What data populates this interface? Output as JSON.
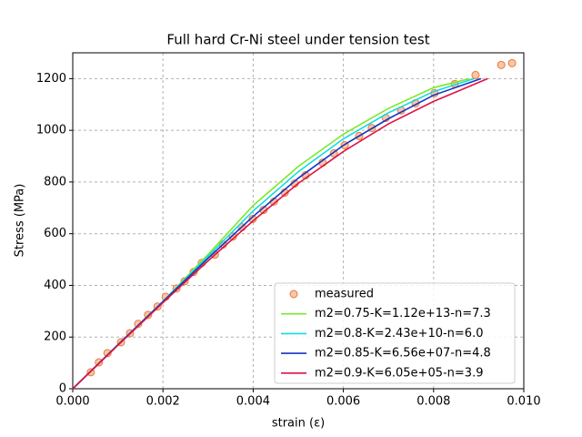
{
  "chart_data": {
    "type": "line",
    "title": "Full hard Cr-Ni steel under tension test",
    "xlabel": "strain (ε)",
    "ylabel": "Stress (MPa)",
    "xlim": [
      0,
      0.01
    ],
    "ylim": [
      0,
      1300
    ],
    "xticks": [
      {
        "value": 0,
        "label": "0.000"
      },
      {
        "value": 0.002,
        "label": "0.002"
      },
      {
        "value": 0.004,
        "label": "0.004"
      },
      {
        "value": 0.006,
        "label": "0.006"
      },
      {
        "value": 0.008,
        "label": "0.008"
      },
      {
        "value": 0.01,
        "label": "0.010"
      }
    ],
    "yticks": [
      0,
      200,
      400,
      600,
      800,
      1000,
      1200
    ],
    "grid": true,
    "legend": "lower right",
    "series": [
      {
        "name": "measured",
        "kind": "scatter",
        "color": "#e8783c",
        "fill": "#f9c6a6",
        "x": [
          0.0004,
          0.00058,
          0.00077,
          0.00107,
          0.00127,
          0.00145,
          0.00167,
          0.00188,
          0.00206,
          0.0023,
          0.00248,
          0.00268,
          0.00286,
          0.00315,
          0.00333,
          0.00355,
          0.00375,
          0.00399,
          0.00423,
          0.00446,
          0.0047,
          0.00492,
          0.00516,
          0.00554,
          0.00579,
          0.00603,
          0.00635,
          0.00663,
          0.00694,
          0.00728,
          0.0076,
          0.00802,
          0.00847,
          0.00893,
          0.0095,
          0.00974
        ],
        "values": [
          64,
          102,
          138,
          180,
          215,
          251,
          286,
          318,
          356,
          388,
          416,
          452,
          487,
          519,
          558,
          589,
          625,
          657,
          692,
          724,
          759,
          794,
          826,
          875,
          911,
          942,
          978,
          1009,
          1048,
          1077,
          1105,
          1144,
          1179,
          1214,
          1253,
          1260
        ]
      },
      {
        "name": "m2=0.75-K=1.12e+13-n=7.3",
        "kind": "line",
        "color": "#7ce82a",
        "x": [
          0,
          0.001,
          0.002,
          0.003,
          0.004,
          0.005,
          0.006,
          0.007,
          0.008,
          0.0088
        ],
        "values": [
          0,
          170,
          338,
          520,
          709,
          860,
          985,
          1085,
          1165,
          1200
        ]
      },
      {
        "name": "m2=0.8-K=2.43e+10-n=6.0",
        "kind": "line",
        "color": "#10dce0",
        "x": [
          0,
          0.001,
          0.002,
          0.003,
          0.004,
          0.005,
          0.006,
          0.007,
          0.008,
          0.0089
        ],
        "values": [
          0,
          170,
          338,
          513,
          688,
          840,
          967,
          1068,
          1150,
          1200
        ]
      },
      {
        "name": "m2=0.85-K=6.56e+07-n=4.8",
        "kind": "line",
        "color": "#1434c4",
        "x": [
          0,
          0.001,
          0.002,
          0.003,
          0.004,
          0.005,
          0.006,
          0.007,
          0.008,
          0.00905
        ],
        "values": [
          0,
          170,
          337,
          505,
          667,
          815,
          942,
          1045,
          1136,
          1200
        ]
      },
      {
        "name": "m2=0.9-K=6.05e+05-n=3.9",
        "kind": "line",
        "color": "#dc1444",
        "x": [
          0,
          0.001,
          0.002,
          0.003,
          0.004,
          0.005,
          0.006,
          0.007,
          0.008,
          0.0092
        ],
        "values": [
          0,
          168,
          333,
          495,
          650,
          795,
          918,
          1025,
          1112,
          1200
        ]
      }
    ]
  }
}
